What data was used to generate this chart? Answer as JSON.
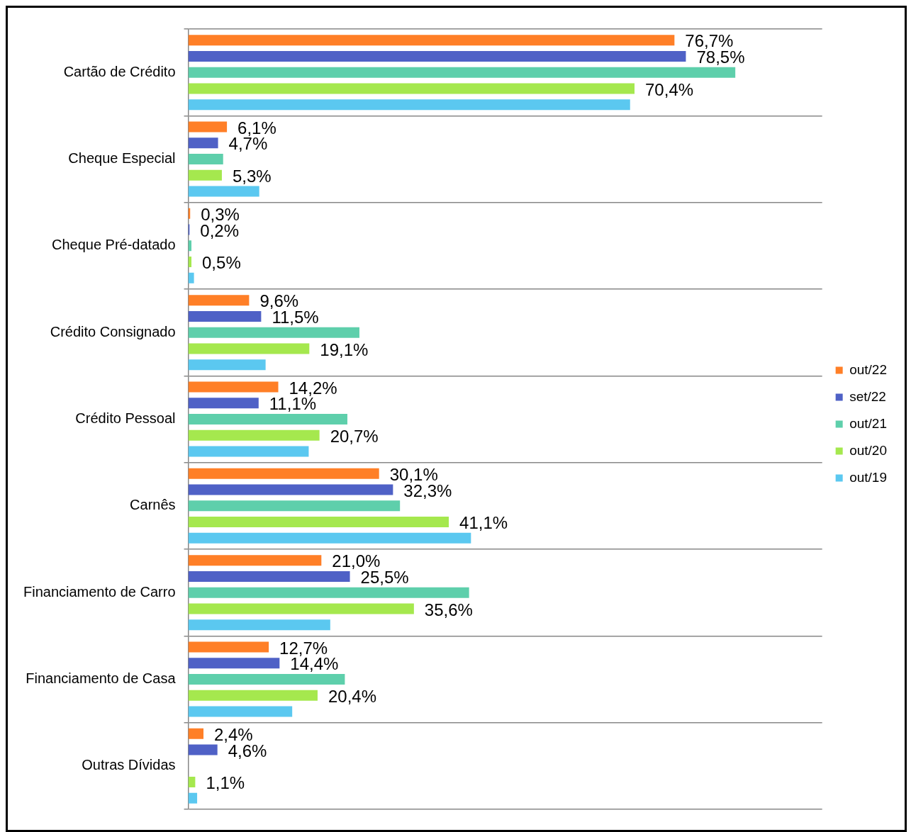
{
  "chart_data": {
    "type": "bar",
    "orientation": "horizontal",
    "categories": [
      "Cartão de Crédito",
      "Cheque Especial",
      "Cheque Pré-datado",
      "Crédito Consignado",
      "Crédito Pessoal",
      "Carnês",
      "Financiamento de Carro",
      "Financiamento de Casa",
      "Outras Dívidas"
    ],
    "series": [
      {
        "name": "out/22",
        "color": "#ff7f27",
        "values": [
          76.7,
          6.1,
          0.3,
          9.6,
          14.2,
          30.1,
          21.0,
          12.7,
          2.4
        ],
        "value_labels": [
          "76,7%",
          "6,1%",
          "0,3%",
          "9,6%",
          "14,2%",
          "30,1%",
          "21,0%",
          "12,7%",
          "2,4%"
        ]
      },
      {
        "name": "set/22",
        "color": "#4f61c6",
        "values": [
          78.5,
          4.7,
          0.2,
          11.5,
          11.1,
          32.3,
          25.5,
          14.4,
          4.6
        ],
        "value_labels": [
          "78,5%",
          "4,7%",
          "0,2%",
          "11,5%",
          "11,1%",
          "32,3%",
          "25,5%",
          "14,4%",
          "4,6%"
        ]
      },
      {
        "name": "out/21",
        "color": "#5ecfab",
        "values": [
          86.3,
          5.5,
          0.5,
          27.0,
          25.1,
          33.4,
          44.3,
          24.7,
          0
        ]
      },
      {
        "name": "out/20",
        "color": "#a5e84e",
        "values": [
          70.4,
          5.3,
          0.5,
          19.1,
          20.7,
          41.1,
          35.6,
          20.4,
          1.1
        ],
        "value_labels": [
          "70,4%",
          "5,3%",
          "0,5%",
          "19,1%",
          "20,7%",
          "41,1%",
          "35,6%",
          "20,4%",
          "1,1%"
        ]
      },
      {
        "name": "out/19",
        "color": "#5bc8f0",
        "values": [
          69.7,
          11.2,
          0.9,
          12.2,
          19.0,
          44.6,
          22.4,
          16.4,
          1.4
        ]
      }
    ],
    "xlim": [
      0,
      100
    ],
    "tick_labels": "y",
    "grid": "y",
    "legend": "right"
  }
}
